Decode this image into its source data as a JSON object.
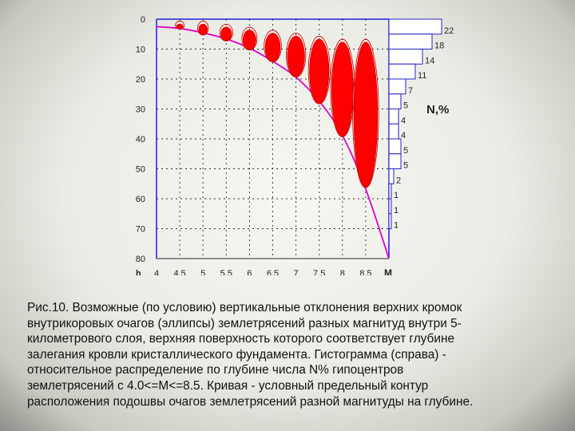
{
  "chart_data": {
    "type": "scatter",
    "title": "",
    "xlabel": "M",
    "ylabel": "h",
    "x_ticks": [
      "4",
      "4.5",
      "5",
      "5.5",
      "6",
      "6.5",
      "7",
      "7.5",
      "8",
      "8.5"
    ],
    "y_ticks": [
      "0",
      "10",
      "20",
      "30",
      "40",
      "50",
      "60",
      "70",
      "80"
    ],
    "xlim": [
      4,
      9
    ],
    "ylim": [
      0,
      80
    ],
    "grid": true,
    "ellipses": [
      {
        "M": 4.5,
        "top": 1,
        "bottom": 3
      },
      {
        "M": 5,
        "top": 1,
        "bottom": 5
      },
      {
        "M": 5.5,
        "top": 2,
        "bottom": 7
      },
      {
        "M": 6,
        "top": 3,
        "bottom": 10
      },
      {
        "M": 6.5,
        "top": 4,
        "bottom": 14
      },
      {
        "M": 7,
        "top": 5,
        "bottom": 19
      },
      {
        "M": 7.5,
        "top": 6,
        "bottom": 28
      },
      {
        "M": 8,
        "top": 7,
        "bottom": 39
      },
      {
        "M": 8.5,
        "top": 7,
        "bottom": 56
      }
    ],
    "envelope_curve": [
      {
        "M": 4.0,
        "h": 2.5
      },
      {
        "M": 4.5,
        "h": 3
      },
      {
        "M": 5.0,
        "h": 4.5
      },
      {
        "M": 5.5,
        "h": 6.5
      },
      {
        "M": 6.0,
        "h": 9.5
      },
      {
        "M": 6.5,
        "h": 14
      },
      {
        "M": 7.0,
        "h": 19
      },
      {
        "M": 7.5,
        "h": 27
      },
      {
        "M": 8.0,
        "h": 38
      },
      {
        "M": 8.5,
        "h": 56
      },
      {
        "M": 9.0,
        "h": 80
      }
    ],
    "histogram": {
      "label": "N,%",
      "bin_height": 5,
      "values": [
        22,
        18,
        14,
        11,
        7,
        5,
        4,
        4,
        5,
        5,
        2,
        1,
        1,
        1
      ]
    }
  },
  "caption": {
    "lines": [
      "Рис.10. Возможные (по условию) вертикальные отклонения верхних кромок",
      "внутрикоровых очагов (эллипсы) землетрясений разных магнитуд внутри 5-",
      "километрового слоя, верхняя поверхность которого соответствует глубине",
      "залегания кровли кристаллического фундамента. Гистограмма (справа) -",
      "относительное распределение по глубине числа N% гипоцентров",
      "землетрясений с 4.0<=M<=8.5. Кривая - условный предельный контур",
      "расположения подошвы очагов землетрясений разной магнитуды на глубине."
    ]
  },
  "colors": {
    "ellipse_fill": "#ff0000",
    "ellipse_stroke": "#cc0000",
    "curve": "#e000c8",
    "grid": "#2b2b2b",
    "axis": "#1e1ede",
    "histogram_fill": "#ffffff",
    "histogram_stroke": "#2323c8"
  }
}
